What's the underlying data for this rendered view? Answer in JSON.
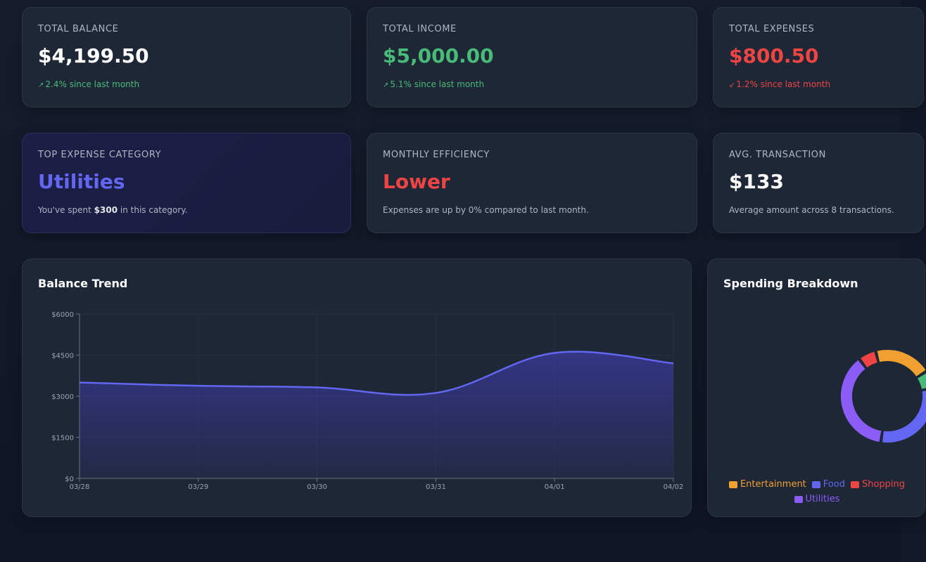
{
  "colors": {
    "green": "#48bb78",
    "red": "#ef4444",
    "indigo": "#6366f1",
    "orange": "#f0a030",
    "violet": "#8b5cf6"
  },
  "stats": {
    "total_balance": {
      "label": "TOTAL BALANCE",
      "value": "$4,199.50",
      "change_icon": "arrow-up-right-icon",
      "change": "2.4% since last month"
    },
    "total_income": {
      "label": "TOTAL INCOME",
      "value": "$5,000.00",
      "change_icon": "arrow-up-right-icon",
      "change": "5.1% since last month"
    },
    "total_expenses": {
      "label": "TOTAL EXPENSES",
      "value": "$800.50",
      "change_icon": "arrow-down-left-icon",
      "change": "1.2% since last month"
    }
  },
  "insights": {
    "top_category": {
      "label": "TOP EXPENSE CATEGORY",
      "value": "Utilities",
      "note_pre": "You've spent ",
      "note_amount": "$300",
      "note_post": " in this category."
    },
    "efficiency": {
      "label": "MONTHLY EFFICIENCY",
      "value": "Lower",
      "note": "Expenses are up by 0% compared to last month."
    },
    "avg_transaction": {
      "label": "AVG. TRANSACTION",
      "value": "$133",
      "note": "Average amount across 8 transactions."
    }
  },
  "balance_panel": {
    "title": "Balance Trend"
  },
  "spending_panel": {
    "title": "Spending Breakdown"
  },
  "chart_data": [
    {
      "type": "area",
      "title": "Balance Trend",
      "x": [
        "03/28",
        "03/29",
        "03/30",
        "03/31",
        "04/01",
        "04/02"
      ],
      "series": [
        {
          "values": [
            3500,
            3380,
            3320,
            3120,
            4580,
            4199.5
          ]
        }
      ],
      "y_ticks": [
        "$0",
        "$1500",
        "$3000",
        "$4500",
        "$6000"
      ],
      "ylim": [
        0,
        6000
      ],
      "grid": true
    },
    {
      "type": "pie",
      "title": "Spending Breakdown",
      "donut": true,
      "legend_position": "bottom",
      "categories": [
        "Entertainment",
        "Food",
        "Shopping",
        "Utilities"
      ],
      "values": [
        160,
        240,
        50,
        300
      ],
      "colors": [
        "#f0a030",
        "#6366f1",
        "#ef4444",
        "#8b5cf6"
      ],
      "extra_segment_color": "#48bb78",
      "extra_segment_value": 50
    }
  ]
}
